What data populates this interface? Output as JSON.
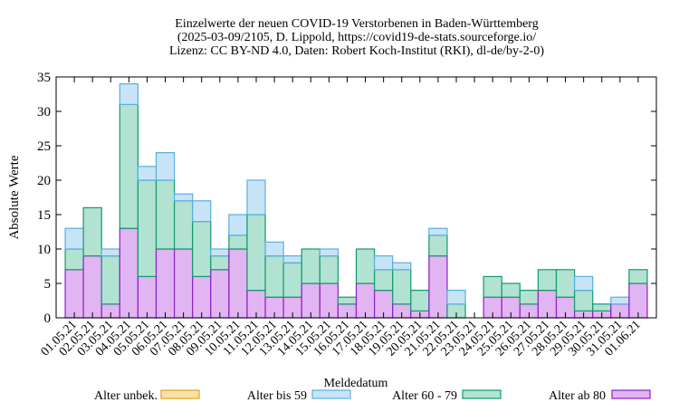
{
  "chart_data": {
    "type": "bar",
    "stacked": true,
    "title": [
      "Einzelwerte der neuen COVID-19 Verstorbenen in Baden-Württemberg",
      "(2025-03-09/2105, D. Lippold, https://covid19-de-stats.sourceforge.io/",
      "Lizenz: CC BY-ND 4.0, Daten: Robert Koch-Institut (RKI), dl-de/by-2-0)"
    ],
    "xlabel": "Meldedatum",
    "ylabel": "Absolute Werte",
    "ylim": [
      0,
      35
    ],
    "yticks": [
      0,
      5,
      10,
      15,
      20,
      25,
      30,
      35
    ],
    "grid": false,
    "legend_position": "bottom",
    "categories": [
      "01.05.21",
      "02.05.21",
      "03.05.21",
      "04.05.21",
      "05.05.21",
      "06.05.21",
      "07.05.21",
      "08.05.21",
      "09.05.21",
      "10.05.21",
      "11.05.21",
      "12.05.21",
      "13.05.21",
      "14.05.21",
      "15.05.21",
      "16.05.21",
      "17.05.21",
      "18.05.21",
      "19.05.21",
      "20.05.21",
      "21.05.21",
      "22.05.21",
      "23.05.21",
      "24.05.21",
      "25.05.21",
      "26.05.21",
      "27.05.21",
      "28.05.21",
      "29.05.21",
      "30.05.21",
      "31.05.21",
      "01.06.21"
    ],
    "series": [
      {
        "name": "Alter unbek.",
        "fill": "#fbe3a6",
        "stroke": "#e4a11b",
        "values": [
          0,
          0,
          0,
          0,
          0,
          0,
          0,
          0,
          0,
          0,
          0,
          0,
          0,
          0,
          0,
          0,
          0,
          0,
          0,
          0,
          0,
          0,
          0,
          0,
          0,
          0,
          0,
          0,
          0,
          0,
          0,
          0
        ]
      },
      {
        "name": "Alter bis 59",
        "fill": "#c7e4f7",
        "stroke": "#5aaede",
        "values": [
          3,
          0,
          1,
          3,
          2,
          4,
          1,
          3,
          1,
          3,
          5,
          2,
          1,
          0,
          1,
          0,
          0,
          2,
          1,
          0,
          1,
          2,
          0,
          0,
          0,
          0,
          0,
          0,
          2,
          0,
          1,
          0
        ]
      },
      {
        "name": "Alter 60 - 79",
        "fill": "#b2e2d2",
        "stroke": "#119a6e",
        "values": [
          3,
          7,
          7,
          18,
          14,
          10,
          7,
          8,
          2,
          2,
          11,
          6,
          5,
          5,
          4,
          1,
          5,
          3,
          5,
          3,
          3,
          2,
          0,
          3,
          2,
          2,
          3,
          4,
          3,
          1,
          0,
          2
        ]
      },
      {
        "name": "Alter ab 80",
        "fill": "#e1b5f1",
        "stroke": "#8d1fc7",
        "values": [
          7,
          9,
          2,
          13,
          6,
          10,
          10,
          6,
          7,
          10,
          4,
          3,
          3,
          5,
          5,
          2,
          5,
          4,
          2,
          1,
          9,
          0,
          0,
          3,
          3,
          2,
          4,
          3,
          1,
          1,
          2,
          5
        ]
      }
    ]
  }
}
